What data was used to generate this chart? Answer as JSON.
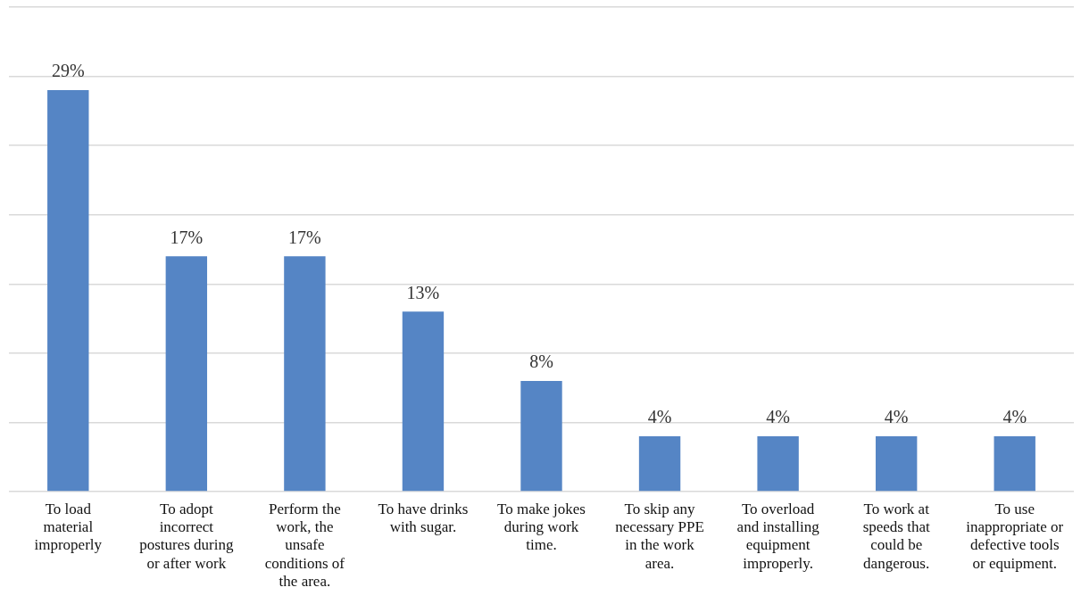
{
  "chart_data": {
    "type": "bar",
    "categories": [
      "To load material improperly",
      "To adopt incorrect postures during or after work",
      "Perform the work, the unsafe conditions of the area.",
      "To have drinks with sugar.",
      "To make jokes during work time.",
      "To skip any necessary PPE in the work area.",
      "To overload and installing equipment improperly.",
      "To work at speeds that could be dangerous.",
      "To use inappropriate or defective tools or equipment."
    ],
    "values": [
      29,
      17,
      17,
      13,
      8,
      4,
      4,
      4,
      4
    ],
    "value_labels": [
      "29%",
      "17%",
      "17%",
      "13%",
      "8%",
      "4%",
      "4%",
      "4%",
      "4%"
    ],
    "color": "#5585c5",
    "ylim": [
      0,
      35
    ],
    "yticks": [
      {
        "value": 0,
        "label": null
      },
      {
        "value": 5,
        "label": null
      },
      {
        "value": 10,
        "label": null
      },
      {
        "value": 15,
        "label": null
      },
      {
        "value": 20,
        "label": null
      },
      {
        "value": 25,
        "label": null
      },
      {
        "value": 30,
        "label": null
      },
      {
        "value": 35,
        "label": null
      }
    ],
    "grid": "y",
    "tick_labels": "x",
    "legend": false
  }
}
